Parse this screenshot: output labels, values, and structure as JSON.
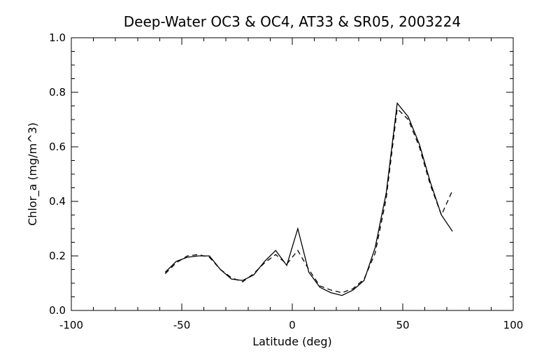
{
  "chart_data": {
    "type": "line",
    "title": "Deep-Water OC3 & OC4, AT33 & SR05, 2003224",
    "xlabel": "Latitude (deg)",
    "ylabel": "Chlor_a (mg/m^3)",
    "xlim": [
      -100,
      100
    ],
    "ylim": [
      0,
      1.0
    ],
    "xticks": [
      -100,
      -50,
      0,
      50,
      100
    ],
    "yticks": [
      0.0,
      0.2,
      0.4,
      0.6,
      0.8,
      1.0
    ],
    "xtick_labels": [
      "-100",
      "-50",
      "0",
      "50",
      "100"
    ],
    "ytick_labels": [
      "0.0",
      "0.2",
      "0.4",
      "0.6",
      "0.8",
      "1.0"
    ],
    "grid": false,
    "colors": {
      "axes": "#000000",
      "series": "#000000"
    },
    "series": [
      {
        "style": "solid",
        "x": [
          -57.5,
          -52.5,
          -47.5,
          -42.5,
          -37.5,
          -32.5,
          -27.5,
          -22.5,
          -17.5,
          -12.5,
          -7.5,
          -2.5,
          2.5,
          7.5,
          12.5,
          17.5,
          22.5,
          27.5,
          32.5,
          37.5,
          42.5,
          47.5,
          52.5,
          57.5,
          62.5,
          67.5,
          72.5
        ],
        "y": [
          0.14,
          0.18,
          0.195,
          0.2,
          0.2,
          0.15,
          0.115,
          0.11,
          0.13,
          0.18,
          0.22,
          0.165,
          0.3,
          0.14,
          0.085,
          0.065,
          0.055,
          0.075,
          0.11,
          0.23,
          0.43,
          0.76,
          0.71,
          0.61,
          0.47,
          0.35,
          0.29
        ]
      },
      {
        "style": "dashed",
        "x": [
          -57.5,
          -52.5,
          -47.5,
          -42.5,
          -37.5,
          -32.5,
          -27.5,
          -22.5,
          -17.5,
          -12.5,
          -7.5,
          -2.5,
          2.5,
          7.5,
          12.5,
          17.5,
          22.5,
          27.5,
          32.5,
          37.5,
          42.5,
          47.5,
          52.5,
          57.5,
          62.5,
          67.5,
          72.5
        ],
        "y": [
          0.135,
          0.175,
          0.2,
          0.205,
          0.195,
          0.15,
          0.12,
          0.105,
          0.135,
          0.175,
          0.205,
          0.17,
          0.22,
          0.15,
          0.09,
          0.075,
          0.065,
          0.08,
          0.115,
          0.21,
          0.41,
          0.74,
          0.7,
          0.6,
          0.46,
          0.35,
          0.44
        ]
      }
    ]
  }
}
